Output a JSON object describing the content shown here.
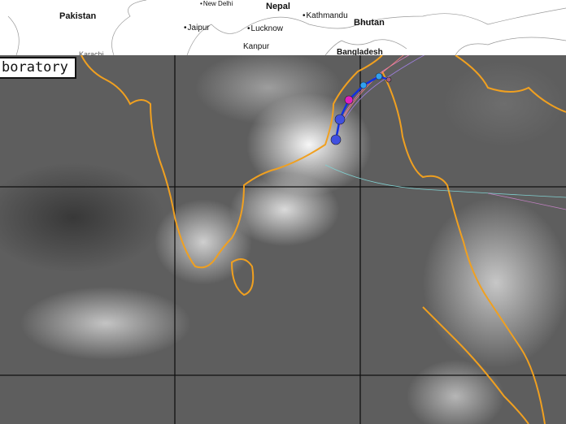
{
  "basemap": {
    "countries": [
      "Pakistan",
      "Nepal",
      "Bhutan",
      "Bangladesh"
    ],
    "cities": [
      "New Delhi",
      "Kathmandu",
      "Jaipur",
      "Lucknow",
      "Kanpur",
      "Karachi"
    ]
  },
  "overlay": {
    "label": "boratory"
  },
  "colors": {
    "coastline": "#f0a020",
    "track": "#1030e0",
    "track_points": [
      "#4050e0",
      "#e020c0",
      "#30a0f0"
    ],
    "grid": "#111111"
  }
}
